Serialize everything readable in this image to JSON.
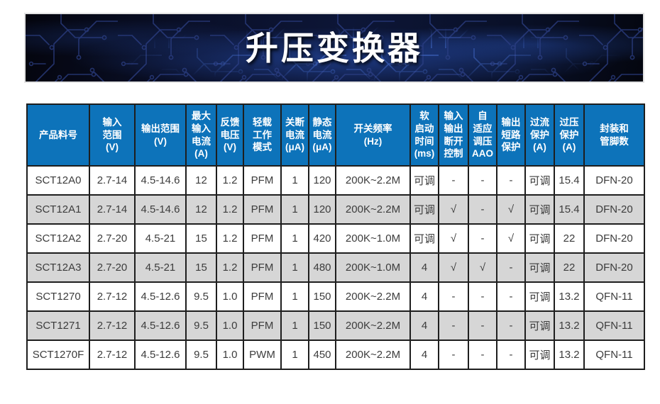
{
  "banner": {
    "title": "升压变换器"
  },
  "table": {
    "columns": [
      {
        "id": "part_number",
        "label": "产品料号"
      },
      {
        "id": "input_range",
        "label": "输入\n范围\n(V)"
      },
      {
        "id": "output_range",
        "label": "输出范围\n(V)"
      },
      {
        "id": "max_input_current",
        "label": "最大\n输入\n电流\n(A)"
      },
      {
        "id": "feedback_voltage",
        "label": "反馈\n电压\n(V)"
      },
      {
        "id": "light_load_mode",
        "label": "轻载\n工作\n模式"
      },
      {
        "id": "shutdown_current",
        "label": "关断\n电流\n(μA)"
      },
      {
        "id": "quiescent_current",
        "label": "静态\n电流\n(μA)"
      },
      {
        "id": "switching_frequency",
        "label": "开关频率\n(Hz)"
      },
      {
        "id": "soft_start_time",
        "label": "软\n启动\n时间\n(ms)"
      },
      {
        "id": "io_disconnect_control",
        "label": "输入\n输出\n断开\n控制"
      },
      {
        "id": "adaptive_aao",
        "label": "自\n适应\n调压\nAAO"
      },
      {
        "id": "output_short_protection",
        "label": "输出\n短路\n保护"
      },
      {
        "id": "overcurrent_protection",
        "label": "过流\n保护\n(A)"
      },
      {
        "id": "overvoltage_protection",
        "label": "过压\n保护\n(A)"
      },
      {
        "id": "package_pins",
        "label": "封装和\n管脚数"
      }
    ],
    "rows": [
      [
        "SCT12A0",
        "2.7-14",
        "4.5-14.6",
        "12",
        "1.2",
        "PFM",
        "1",
        "120",
        "200K~2.2M",
        "可调",
        "-",
        "-",
        "-",
        "可调",
        "15.4",
        "DFN-20"
      ],
      [
        "SCT12A1",
        "2.7-14",
        "4.5-14.6",
        "12",
        "1.2",
        "PFM",
        "1",
        "120",
        "200K~2.2M",
        "可调",
        "√",
        "-",
        "√",
        "可调",
        "15.4",
        "DFN-20"
      ],
      [
        "SCT12A2",
        "2.7-20",
        "4.5-21",
        "15",
        "1.2",
        "PFM",
        "1",
        "420",
        "200K~1.0M",
        "可调",
        "√",
        "-",
        "√",
        "可调",
        "22",
        "DFN-20"
      ],
      [
        "SCT12A3",
        "2.7-20",
        "4.5-21",
        "15",
        "1.2",
        "PFM",
        "1",
        "480",
        "200K~1.0M",
        "4",
        "√",
        "√",
        "-",
        "可调",
        "22",
        "DFN-20"
      ],
      [
        "SCT1270",
        "2.7-12",
        "4.5-12.6",
        "9.5",
        "1.0",
        "PFM",
        "1",
        "150",
        "200K~2.2M",
        "4",
        "-",
        "-",
        "-",
        "可调",
        "13.2",
        "QFN-11"
      ],
      [
        "SCT1271",
        "2.7-12",
        "4.5-12.6",
        "9.5",
        "1.0",
        "PFM",
        "1",
        "150",
        "200K~2.2M",
        "4",
        "-",
        "-",
        "-",
        "可调",
        "13.2",
        "QFN-11"
      ],
      [
        "SCT1270F",
        "2.7-12",
        "4.5-12.6",
        "9.5",
        "1.0",
        "PWM",
        "1",
        "450",
        "200K~2.2M",
        "4",
        "-",
        "-",
        "-",
        "可调",
        "13.2",
        "QFN-11"
      ]
    ]
  },
  "colors": {
    "header_bg": "#0d73ba",
    "stripe_bg": "#d6d6d6",
    "border": "#1e1e1e",
    "banner_trace_dim": "#2c3f85",
    "banner_trace_bright": "#4a74d8",
    "banner_glow": "#2b57c0"
  }
}
